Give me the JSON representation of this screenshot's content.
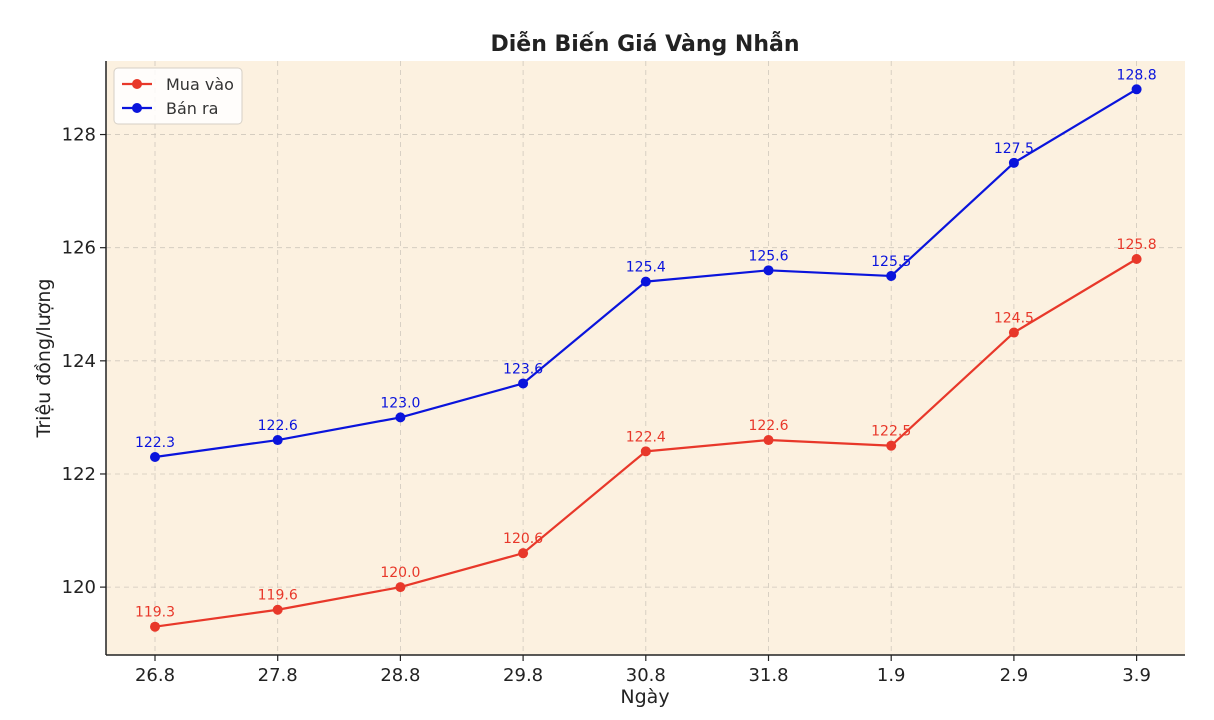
{
  "chart_data": {
    "type": "line",
    "title": "Diễn Biến Giá Vàng Nhẫn",
    "xlabel": "Ngày",
    "ylabel": "Triệu đồng/lượng",
    "categories": [
      "26.8",
      "27.8",
      "28.8",
      "29.8",
      "30.8",
      "31.8",
      "1.9",
      "2.9",
      "3.9"
    ],
    "ylim": [
      118.8,
      129.3
    ],
    "yticks": [
      120,
      122,
      124,
      126,
      128
    ],
    "grid": true,
    "legend_position": "top-left",
    "background": "#fcf1e0",
    "series": [
      {
        "name": "Mua vào",
        "color": "#e8382a",
        "values": [
          119.3,
          119.6,
          120.0,
          120.6,
          122.4,
          122.6,
          122.5,
          124.5,
          125.8
        ],
        "labels": [
          "119.3",
          "119.6",
          "120.0",
          "120.6",
          "122.4",
          "122.6",
          "122.5",
          "124.5",
          "125.8"
        ]
      },
      {
        "name": "Bán ra",
        "color": "#0a14dc",
        "values": [
          122.3,
          122.6,
          123.0,
          123.6,
          125.4,
          125.6,
          125.5,
          127.5,
          128.8
        ],
        "labels": [
          "122.3",
          "122.6",
          "123.0",
          "123.6",
          "125.4",
          "125.6",
          "125.5",
          "127.5",
          "128.8"
        ]
      }
    ]
  }
}
